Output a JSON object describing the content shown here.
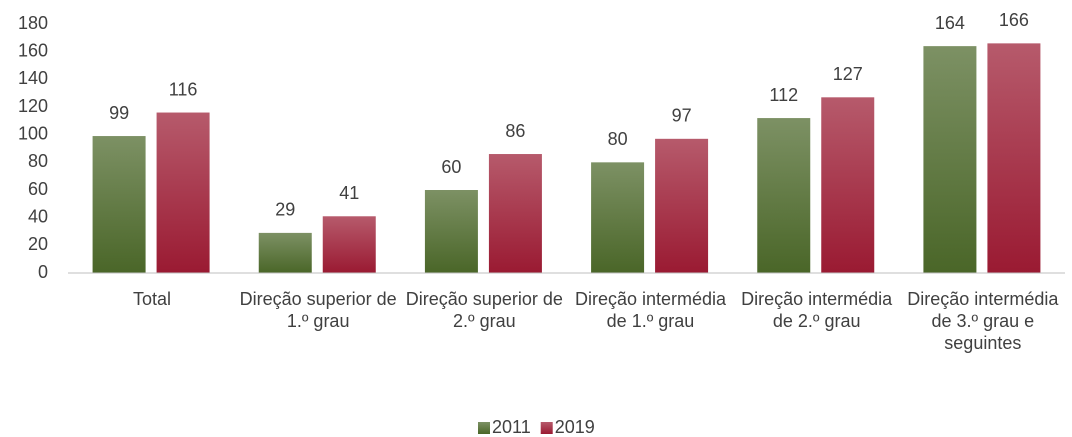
{
  "chart_data": {
    "type": "bar",
    "categories": [
      "Total",
      "Direção superior de 1.º grau",
      "Direção superior de 2.º grau",
      "Direção intermédia de 1.º grau",
      "Direção intermédia de 2.º grau",
      "Direção intermédia de 3.º grau e seguintes"
    ],
    "series": [
      {
        "name": "2011",
        "color": "#4a6628",
        "values": [
          99,
          29,
          60,
          80,
          112,
          164
        ]
      },
      {
        "name": "2019",
        "color": "#9a1a32",
        "values": [
          116,
          41,
          86,
          97,
          127,
          166
        ]
      }
    ],
    "ylim": [
      0,
      180
    ],
    "yticks": [
      0,
      20,
      40,
      60,
      80,
      100,
      120,
      140,
      160,
      180
    ],
    "grid": false,
    "legend": "bottom"
  }
}
